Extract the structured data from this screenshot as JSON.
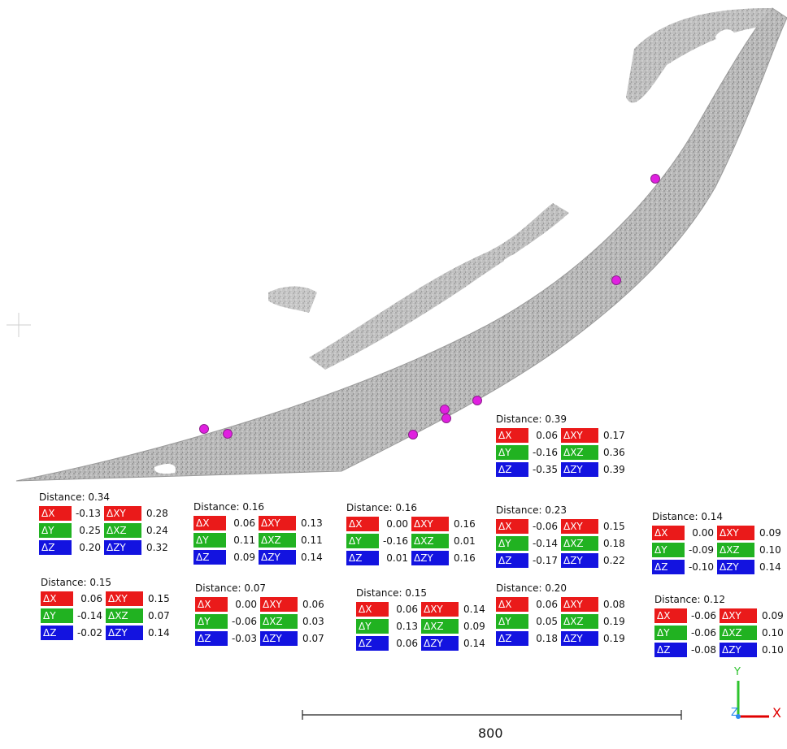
{
  "scale_bar": {
    "label": "800"
  },
  "axes": {
    "x_label": "X",
    "y_label": "Y",
    "z_label": "Z"
  },
  "colors": {
    "dx": "#ea1a1a",
    "dy": "#21b221",
    "dz": "#1313e0",
    "marker": "#e020e0"
  },
  "icons": [
    "crosshair-icon",
    "axis-triad-icon"
  ],
  "panels": [
    {
      "distance": "Distance: 0.39",
      "dx": "0.06",
      "dy": "-0.16",
      "dz": "-0.35",
      "dxy": "0.17",
      "dxz": "0.36",
      "dzy": "0.39"
    },
    {
      "distance": "Distance: 0.34",
      "dx": "-0.13",
      "dy": "0.25",
      "dz": "0.20",
      "dxy": "0.28",
      "dxz": "0.24",
      "dzy": "0.32"
    },
    {
      "distance": "Distance: 0.16",
      "dx": "0.06",
      "dy": "0.11",
      "dz": "0.09",
      "dxy": "0.13",
      "dxz": "0.11",
      "dzy": "0.14"
    },
    {
      "distance": "Distance: 0.16",
      "dx": "0.00",
      "dy": "-0.16",
      "dz": "0.01",
      "dxy": "0.16",
      "dxz": "0.01",
      "dzy": "0.16"
    },
    {
      "distance": "Distance: 0.23",
      "dx": "-0.06",
      "dy": "-0.14",
      "dz": "-0.17",
      "dxy": "0.15",
      "dxz": "0.18",
      "dzy": "0.22"
    },
    {
      "distance": "Distance: 0.14",
      "dx": "0.00",
      "dy": "-0.09",
      "dz": "-0.10",
      "dxy": "0.09",
      "dxz": "0.10",
      "dzy": "0.14"
    },
    {
      "distance": "Distance: 0.15",
      "dx": "0.06",
      "dy": "-0.14",
      "dz": "-0.02",
      "dxy": "0.15",
      "dxz": "0.07",
      "dzy": "0.14"
    },
    {
      "distance": "Distance: 0.07",
      "dx": "0.00",
      "dy": "-0.06",
      "dz": "-0.03",
      "dxy": "0.06",
      "dxz": "0.03",
      "dzy": "0.07"
    },
    {
      "distance": "Distance: 0.15",
      "dx": "0.06",
      "dy": "0.13",
      "dz": "0.06",
      "dxy": "0.14",
      "dxz": "0.09",
      "dzy": "0.14"
    },
    {
      "distance": "Distance: 0.20",
      "dx": "0.06",
      "dy": "0.05",
      "dz": "0.18",
      "dxy": "0.08",
      "dxz": "0.19",
      "dzy": "0.19"
    },
    {
      "distance": "Distance: 0.12",
      "dx": "-0.06",
      "dy": "-0.06",
      "dz": "-0.08",
      "dxy": "0.09",
      "dxz": "0.10",
      "dzy": "0.10"
    }
  ],
  "labels": {
    "dx": "ΔX",
    "dy": "ΔY",
    "dz": "ΔZ",
    "dxy": "ΔXY",
    "dxz": "ΔXZ",
    "dzy": "ΔZY"
  }
}
